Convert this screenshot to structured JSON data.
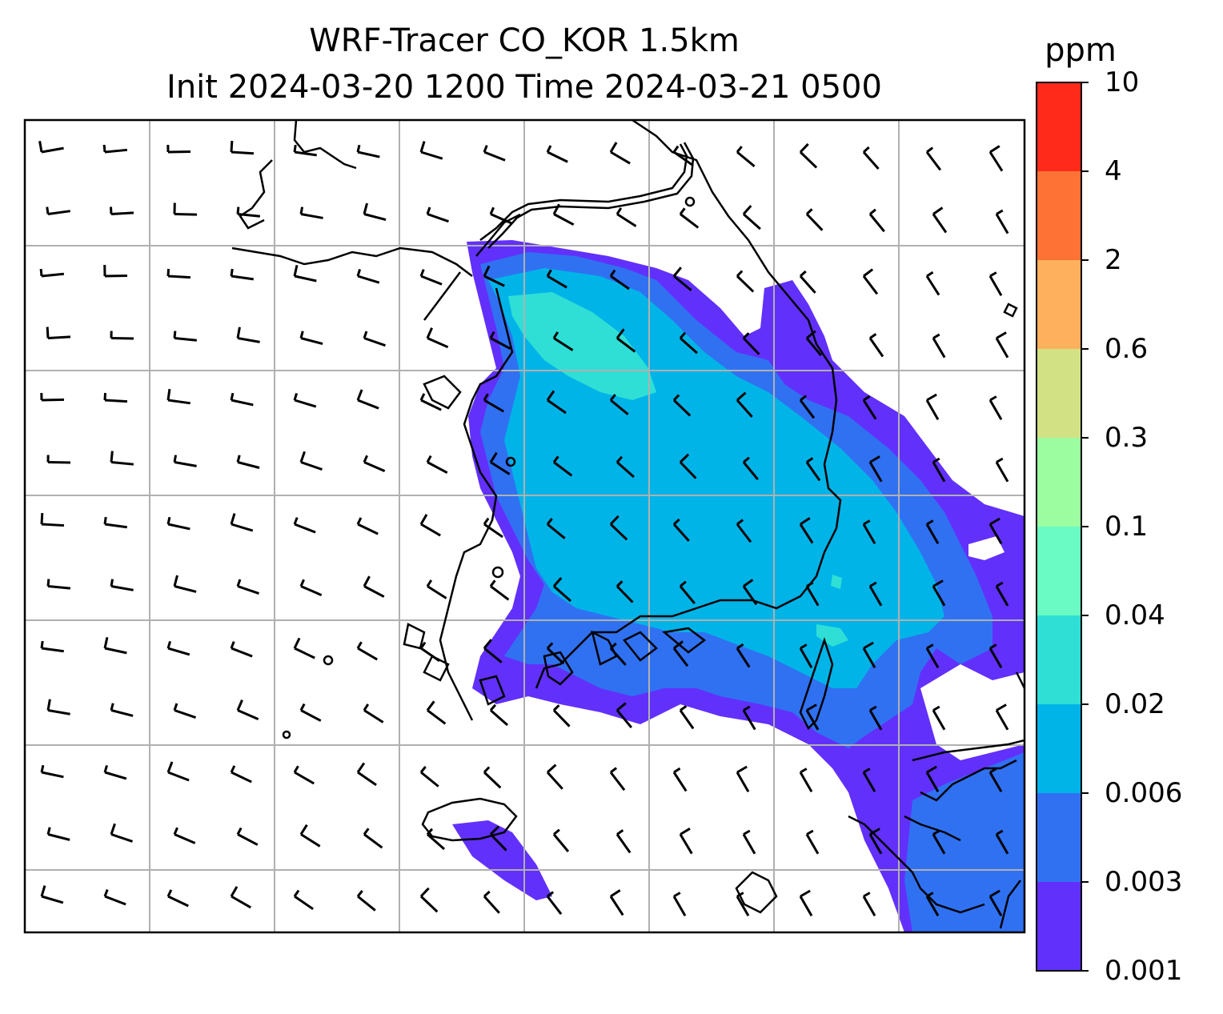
{
  "title": {
    "line1": "WRF-Tracer CO_KOR 1.5km",
    "line2": "Init 2024-03-20 1200 Time 2024-03-21 0500"
  },
  "colorbar": {
    "unit": "ppm",
    "levels": [
      {
        "label": "10",
        "color": "#ff2a1a"
      },
      {
        "label": "4",
        "color": "#ff7236"
      },
      {
        "label": "2",
        "color": "#ffb05c"
      },
      {
        "label": "0.6",
        "color": "#d2e184"
      },
      {
        "label": "0.3",
        "color": "#9cfca0"
      },
      {
        "label": "0.1",
        "color": "#6afbc4"
      },
      {
        "label": "0.04",
        "color": "#2fdfd6"
      },
      {
        "label": "0.02",
        "color": "#00b4e8"
      },
      {
        "label": "0.006",
        "color": "#3071f2"
      },
      {
        "label": "0.003",
        "color": "#6230fb"
      },
      {
        "label": "0.001",
        "color": null
      }
    ]
  },
  "map": {
    "gridlines": true,
    "gridline_color": "#b0b0b0",
    "coastline_color": "#000000",
    "wind_barbs": "black",
    "features": [
      "coastline",
      "wind-barbs",
      "co-concentration-contours",
      "gridlines",
      "colorbar"
    ]
  }
}
